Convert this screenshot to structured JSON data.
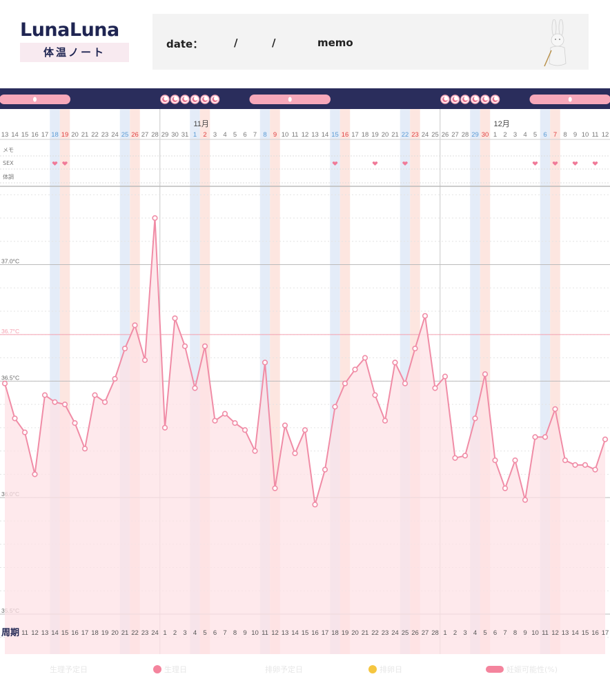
{
  "header": {
    "logo_text": "LunaLuna",
    "logo_subtitle": "体温ノート",
    "date_label": "date：",
    "date_sep1": "/",
    "date_sep2": "/",
    "memo_label": "memo"
  },
  "colors": {
    "navy": "#2a2d5c",
    "pink_line": "#f08ca6",
    "pink_fill": "#fde2e6",
    "pill": "#f7a8ba",
    "blue_tint": "#e4ecf8",
    "peach_tint": "#fde6e0",
    "blue_text": "#5a9bd5",
    "red_text": "#e04040",
    "grid": "#bbbbbb",
    "ref_line": "#f4a0b0"
  },
  "chart_data": {
    "type": "line",
    "series": [
      {
        "values": [
          36.49,
          36.34,
          36.28,
          36.1,
          36.44,
          36.41,
          36.4,
          36.32,
          36.21,
          36.44,
          36.41,
          36.51,
          36.64,
          36.74,
          36.59,
          37.2,
          36.3,
          36.77,
          36.65,
          36.47,
          36.65,
          36.33,
          36.36,
          36.32,
          36.29,
          36.2,
          36.58,
          36.04,
          36.31,
          36.19,
          36.29,
          35.97,
          36.12,
          36.39,
          36.49,
          36.55,
          36.6,
          36.44,
          36.33,
          36.58,
          36.49,
          36.64,
          36.78,
          36.47,
          36.52,
          36.17,
          36.18,
          36.34,
          36.53,
          36.16,
          36.04,
          36.16,
          35.99,
          36.26,
          36.26,
          36.38,
          36.16,
          36.14,
          36.14,
          36.12,
          36.25
        ]
      }
    ],
    "ylim": [
      35.46,
      37.5
    ],
    "y_ticks": [
      {
        "value": 37.0,
        "label": "37.0°C"
      },
      {
        "value": 36.7,
        "label": "36.7°C",
        "highlight": true
      },
      {
        "value": 36.5,
        "label": "36.5°C"
      },
      {
        "value": 36.0,
        "label": "36.0°C"
      },
      {
        "value": 35.5,
        "label": "35.5°C"
      }
    ],
    "date_labels": [
      "13",
      "14",
      "15",
      "16",
      "17",
      "18",
      "19",
      "20",
      "21",
      "22",
      "23",
      "24",
      "25",
      "26",
      "27",
      "28",
      "29",
      "30",
      "31",
      "1",
      "2",
      "3",
      "4",
      "5",
      "6",
      "7",
      "8",
      "9",
      "10",
      "11",
      "12",
      "13",
      "14",
      "15",
      "16",
      "17",
      "18",
      "19",
      "20",
      "21",
      "22",
      "23",
      "24",
      "25",
      "26",
      "27",
      "28",
      "29",
      "30",
      "1",
      "2",
      "3",
      "4",
      "5",
      "6",
      "7",
      "8",
      "9",
      "10",
      "11",
      "12"
    ],
    "cycle_labels": [
      "周期",
      "11",
      "12",
      "13",
      "14",
      "15",
      "16",
      "17",
      "18",
      "19",
      "20",
      "21",
      "22",
      "23",
      "24",
      "1",
      "2",
      "3",
      "4",
      "5",
      "6",
      "7",
      "8",
      "9",
      "10",
      "11",
      "12",
      "13",
      "14",
      "15",
      "16",
      "17",
      "18",
      "19",
      "20",
      "21",
      "22",
      "23",
      "24",
      "25",
      "26",
      "27",
      "28",
      "1",
      "2",
      "3",
      "4",
      "5",
      "6",
      "7",
      "8",
      "9",
      "10",
      "11",
      "12",
      "13",
      "14",
      "15",
      "16",
      "17"
    ],
    "month_labels": [
      {
        "index": 19,
        "label": "11月"
      },
      {
        "index": 49,
        "label": "12月"
      }
    ],
    "blue_day_indices": [
      5,
      12,
      19,
      26,
      33,
      40,
      47,
      54
    ],
    "red_day_indices": [
      6,
      13,
      20,
      27,
      34,
      41,
      48,
      55
    ],
    "month_start_indices": [
      16,
      44
    ],
    "blue_band_indices": [
      5,
      12,
      19,
      26,
      33,
      40,
      47,
      54
    ],
    "peach_band_indices": [
      6,
      13,
      20,
      27,
      34,
      41,
      48,
      55
    ],
    "row_labels": [
      "メモ",
      "SEX",
      "体調"
    ],
    "heart_indices": [
      5,
      6,
      33,
      37,
      40,
      53,
      55,
      57,
      59
    ],
    "fertile_pill_ranges": [
      [
        0,
        6
      ],
      [
        25,
        32
      ],
      [
        53,
        60
      ]
    ],
    "period_icon_ranges": [
      [
        16,
        21
      ],
      [
        44,
        49
      ]
    ]
  },
  "legend": {
    "period_expected": "生理予定日",
    "period_day": "生理日",
    "ovulation_expected": "排卵予定日",
    "ovulation_day": "排卵日",
    "fertility": "妊娠可能性(%)"
  }
}
